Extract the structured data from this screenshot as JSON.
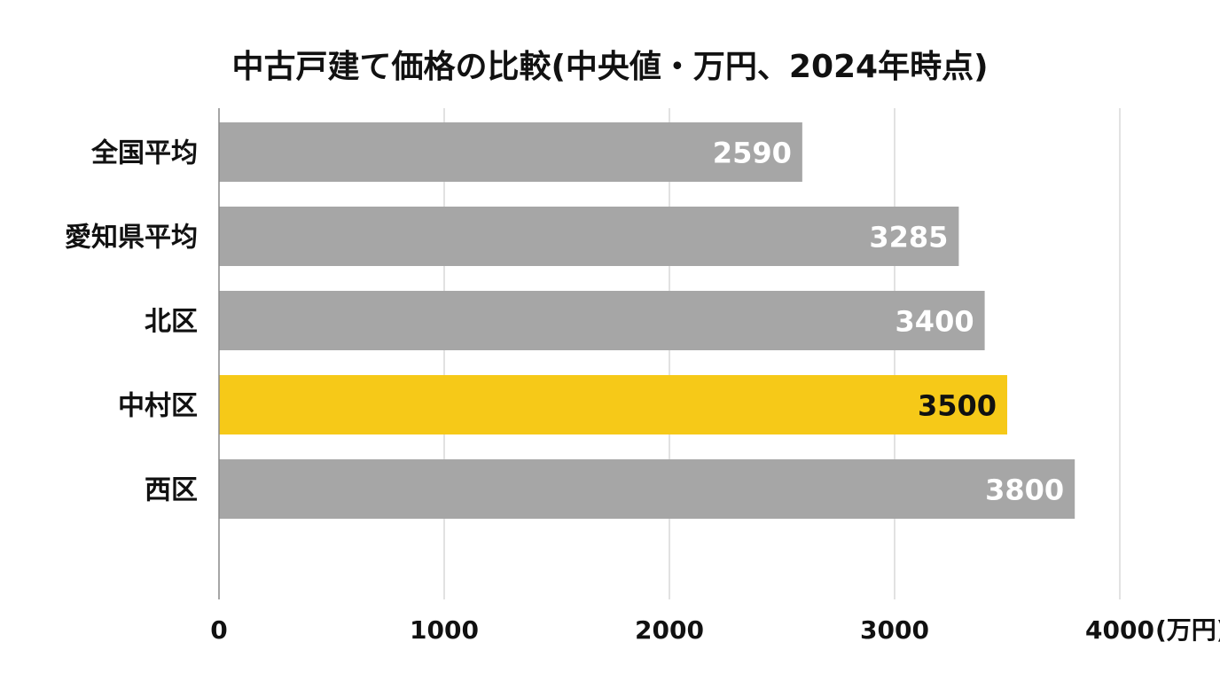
{
  "chart_data": {
    "type": "bar",
    "orientation": "horizontal",
    "title": "中古戸建て価格の比較(中央値・万円、2024年時点)",
    "categories": [
      "全国平均",
      "愛知県平均",
      "北区",
      "中村区",
      "西区"
    ],
    "values": [
      2590,
      3285,
      3400,
      3500,
      3800
    ],
    "value_labels": [
      "2590",
      "3285",
      "3400",
      "3500",
      "3800"
    ],
    "highlight": "中村区",
    "xlim": [
      0,
      4000
    ],
    "x_ticks": [
      0,
      1000,
      2000,
      3000,
      4000
    ],
    "x_tick_labels": [
      "0",
      "1000",
      "2000",
      "3000",
      "4000"
    ],
    "x_unit_label": "(万円)",
    "grid": "vertical",
    "colors": {
      "bar": "#a6a6a6",
      "highlight_bar": "#f6c918",
      "label_on_bar": "#ffffff",
      "label_on_highlight": "#111111",
      "grid": "#d9d9d9",
      "axis": "#888888",
      "text": "#111111"
    }
  }
}
